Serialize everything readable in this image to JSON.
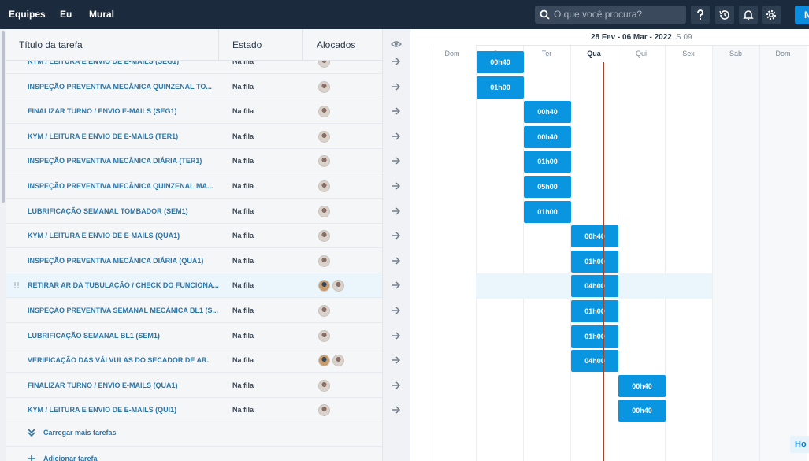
{
  "nav": {
    "teams": "Equipes",
    "me": "Eu",
    "wall": "Mural"
  },
  "search": {
    "placeholder": "O que você procura?"
  },
  "new_button_label": "N",
  "table": {
    "col_title": "Título da tarefa",
    "col_state": "Estado",
    "col_allocated": "Alocados",
    "rows": [
      {
        "title": "KYM / LEITURA E ENVIO DE E-MAILS (SEG1)",
        "state": "Na fila",
        "avatars": 1
      },
      {
        "title": "INSPEÇÃO PREVENTIVA MECÂNICA QUINZENAL TO...",
        "state": "Na fila",
        "avatars": 1
      },
      {
        "title": "FINALIZAR TURNO / ENVIO E-MAILS (SEG1)",
        "state": "Na fila",
        "avatars": 1
      },
      {
        "title": "KYM / LEITURA E ENVIO DE E-MAILS (TER1)",
        "state": "Na fila",
        "avatars": 1
      },
      {
        "title": "INSPEÇÃO PREVENTIVA MECÂNICA DIÁRIA (TER1)",
        "state": "Na fila",
        "avatars": 1
      },
      {
        "title": "INSPEÇÃO PREVENTIVA MECÂNICA QUINZENAL MA...",
        "state": "Na fila",
        "avatars": 1
      },
      {
        "title": "LUBRIFICAÇÃO SEMANAL TOMBADOR (SEM1)",
        "state": "Na fila",
        "avatars": 1
      },
      {
        "title": "KYM / LEITURA E ENVIO DE E-MAILS (QUA1)",
        "state": "Na fila",
        "avatars": 1
      },
      {
        "title": "INSPEÇÃO PREVENTIVA MECÂNICA DIÁRIA (QUA1)",
        "state": "Na fila",
        "avatars": 1
      },
      {
        "title": "RETIRAR AR DA TUBULAÇÃO / CHECK DO FUNCIONA...",
        "state": "Na fila",
        "avatars": 2
      },
      {
        "title": "INSPEÇÃO PREVENTIVA SEMANAL MECÂNICA BL1 (S...",
        "state": "Na fila",
        "avatars": 1
      },
      {
        "title": "LUBRIFICAÇÃO SEMANAL BL1 (SEM1)",
        "state": "Na fila",
        "avatars": 1
      },
      {
        "title": "VERIFICAÇÃO DAS VÁLVULAS DO SECADOR DE AR.",
        "state": "Na fila",
        "avatars": 2
      },
      {
        "title": "FINALIZAR TURNO / ENVIO E-MAILS (QUA1)",
        "state": "Na fila",
        "avatars": 1
      },
      {
        "title": "KYM / LEITURA E ENVIO DE E-MAILS (QUI1)",
        "state": "Na fila",
        "avatars": 1
      }
    ],
    "load_more": "Carregar mais tarefas",
    "add_task": "Adicionar tarefa"
  },
  "gantt": {
    "week_range": "28 Fev - 06 Mar - 2022",
    "week_number": "S 09",
    "days": [
      "Dom",
      "Seg",
      "Ter",
      "Qua",
      "Qui",
      "Sex",
      "Sab",
      "Dom"
    ],
    "today_label": "Qua",
    "bars": [
      {
        "day": "Seg",
        "label": "00h40"
      },
      {
        "day": "Seg",
        "label": "01h00"
      },
      {
        "day": "Ter",
        "label": "00h40"
      },
      {
        "day": "Ter",
        "label": "00h40"
      },
      {
        "day": "Ter",
        "label": "01h00"
      },
      {
        "day": "Ter",
        "label": "05h00"
      },
      {
        "day": "Ter",
        "label": "01h00"
      },
      {
        "day": "Qua",
        "label": "00h40"
      },
      {
        "day": "Qua",
        "label": "01h00"
      },
      {
        "day": "Qua",
        "label": "04h00"
      },
      {
        "day": "Qua",
        "label": "01h00"
      },
      {
        "day": "Qua",
        "label": "01h00"
      },
      {
        "day": "Qua",
        "label": "04h00"
      },
      {
        "day": "Qui",
        "label": "00h40"
      },
      {
        "day": "Qui",
        "label": "00h40"
      }
    ],
    "today_button": "Ho"
  }
}
